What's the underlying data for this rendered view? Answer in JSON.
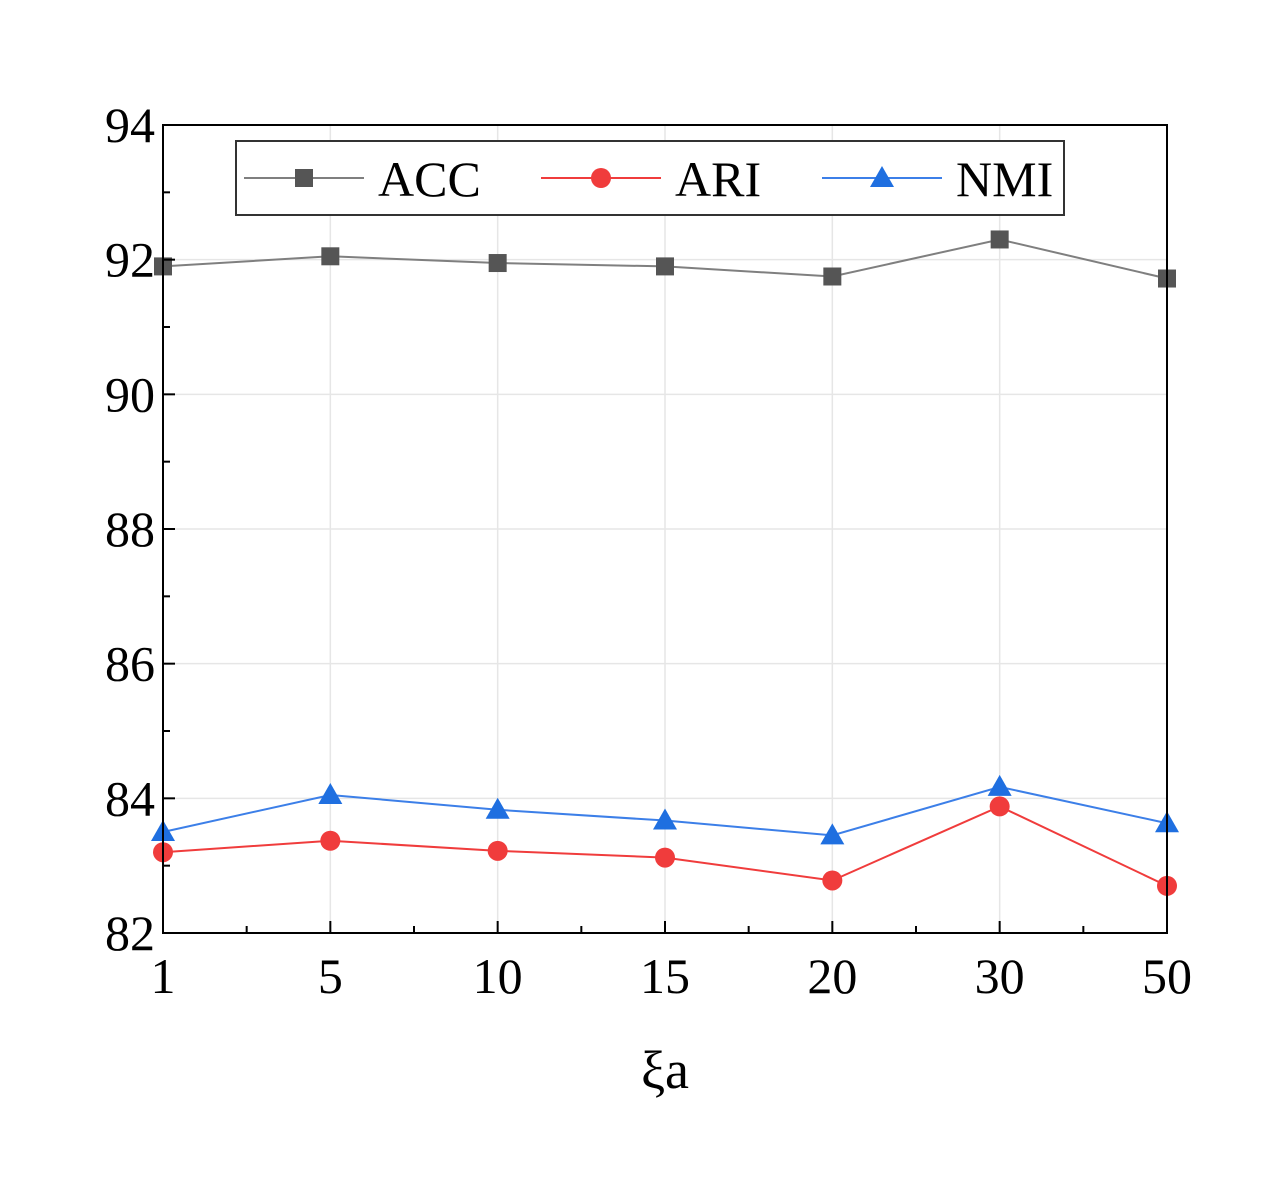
{
  "chart_data": {
    "type": "line",
    "title": "",
    "xlabel": "ξa",
    "ylabel": "",
    "categories": [
      "1",
      "5",
      "10",
      "15",
      "20",
      "30",
      "50"
    ],
    "ylim": [
      82,
      94
    ],
    "yticks": [
      82,
      84,
      86,
      88,
      90,
      92,
      94
    ],
    "grid": true,
    "legend_position": "top",
    "series": [
      {
        "name": "ACC",
        "marker": "square",
        "color": "#555555",
        "line_color": "#7f7f7f",
        "values": [
          91.9,
          92.05,
          91.95,
          91.9,
          91.75,
          92.3,
          91.72
        ]
      },
      {
        "name": "ARI",
        "marker": "circle",
        "color": "#f03c3c",
        "line_color": "#f03c3c",
        "values": [
          83.2,
          83.37,
          83.22,
          83.12,
          82.78,
          83.88,
          82.7
        ]
      },
      {
        "name": "NMI",
        "marker": "triangle",
        "color": "#1f6fe0",
        "line_color": "#3c7fe8",
        "values": [
          83.5,
          84.05,
          83.83,
          83.67,
          83.45,
          84.17,
          83.63
        ]
      }
    ]
  }
}
